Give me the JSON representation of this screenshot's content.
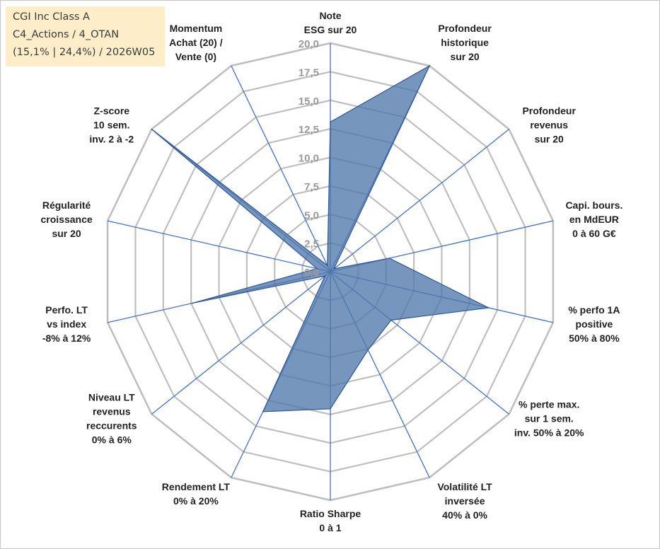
{
  "title": {
    "line1": "CGI Inc Class A",
    "line2": "C4_Actions / 4_OTAN",
    "line3": "(15,1% | 24,4%) / 2026W05"
  },
  "colors": {
    "grid": "#bfbfbf",
    "spoke": "#4472c4",
    "fill": "#4f79aa",
    "line": "#2f5597",
    "title_bg": "#fdedc9"
  },
  "chart_data": {
    "type": "radar",
    "title": "CGI Inc Class A",
    "rmin": 0,
    "rmax": 20,
    "tick_step": 2.5,
    "tick_labels": [
      "0,0",
      "2,5",
      "5,0",
      "7,5",
      "10,0",
      "12,5",
      "15,0",
      "17,5",
      "20,0"
    ],
    "grid": true,
    "categories": [
      "Note ESG sur 20",
      "Profondeur historique sur 20",
      "Profondeur revenus sur 20",
      "Capi. bours. en MdEUR 0 à 60 G€",
      "% perfo 1A positive 50% à 80%",
      "% perte max. sur 1 sem. inv. 50% à 20%",
      "Volatilité LT inversée 40% à 0%",
      "Ratio Sharpe 0 à 1",
      "Rendement LT 0% à 20%",
      "Niveau LT revenus reccurents 0% à 6%",
      "Perfo. LT vs index -8% à 12%",
      "Régularité croissance sur 20",
      "Z-score 10 sem. inv. 2 à -2",
      "Momentum Achat (20) / Vente (0)"
    ],
    "category_lines": [
      [
        "Note",
        "ESG sur 20"
      ],
      [
        "Profondeur",
        "historique",
        "sur 20"
      ],
      [
        "Profondeur",
        "revenus",
        "sur 20"
      ],
      [
        "Capi. bours.",
        "en MdEUR",
        "0 à 60 G€"
      ],
      [
        "% perfo 1A",
        "positive",
        "50% à 80%"
      ],
      [
        "% perte max.",
        "sur 1 sem.",
        "inv. 50% à 20%"
      ],
      [
        "Volatilité LT",
        "inversée",
        "40% à 0%"
      ],
      [
        "Ratio Sharpe",
        "0 à 1"
      ],
      [
        "Rendement LT",
        "0% à 20%"
      ],
      [
        "Niveau LT",
        "revenus",
        "reccurents",
        "0% à 6%"
      ],
      [
        "Perfo. LT",
        "vs index",
        "-8% à 12%"
      ],
      [
        "Régularité",
        "croissance",
        "sur 20"
      ],
      [
        "Z-score",
        "10 sem.",
        "inv. 2 à -2"
      ],
      [
        "Momentum",
        "Achat (20) /",
        "Vente (0)"
      ]
    ],
    "series": [
      {
        "values": [
          13.1,
          20.0,
          0.4,
          5.3,
          14.2,
          6.8,
          7.6,
          12.0,
          13.6,
          0.6,
          12.4,
          1.2,
          20.0,
          0.6
        ]
      }
    ]
  }
}
